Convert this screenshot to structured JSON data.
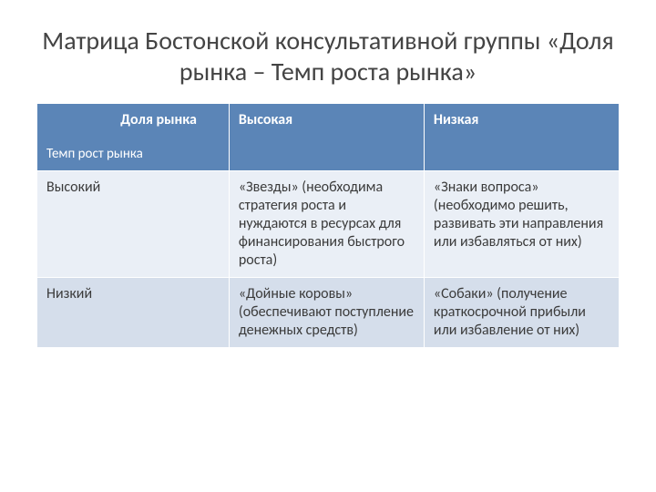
{
  "title": "Матрица Бостонской консультативной группы «Доля рынка – Темп роста рынка»",
  "table": {
    "header": {
      "corner_top": "Доля рынка",
      "corner_bottom": "Темп рост рынка",
      "col_high": "Высокая",
      "col_low": "Низкая"
    },
    "rows": [
      {
        "label": "Высокий",
        "high": "«Звезды» (необходима стратегия роста и нуждаются в ресурсах для финансирования быстрого роста)",
        "low": "«Знаки вопроса» (необходимо решить, развивать эти направления или избавляться от них)"
      },
      {
        "label": "Низкий",
        "high": "«Дойные коровы» (обеспечивают поступление денежных средств)",
        "low": "«Собаки» (получение краткосрочной прибыли или избавление от них)"
      }
    ],
    "colors": {
      "header_bg": "#5b85b7",
      "header_text": "#ffffff",
      "row_odd_bg": "#eaeff6",
      "row_even_bg": "#d5deeb",
      "body_text": "#3b3b3b",
      "border": "#ffffff",
      "title_text": "#444444"
    },
    "font_sizes": {
      "title": 28,
      "header": 16,
      "body": 16
    }
  }
}
